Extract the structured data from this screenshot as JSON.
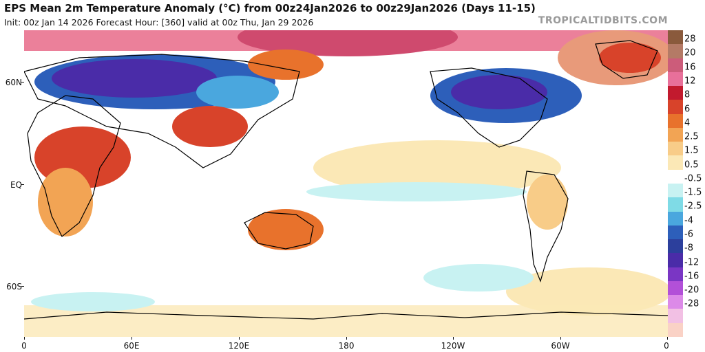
{
  "header": {
    "title": "EPS Mean 2m Temperature Anomaly (°C) from 00z24Jan2026 to 00z29Jan2026 (Days 11-15)",
    "subtitle": "Init: 00z Jan 14 2026   Forecast Hour: [360]   valid at 00z Thu, Jan 29 2026",
    "brand": "TROPICALTIDBITS.COM"
  },
  "map": {
    "projection": "equirectangular",
    "lon_range": [
      0,
      360
    ],
    "lat_range": [
      -90,
      90
    ],
    "lat_labels": [
      "60N",
      "EQ",
      "60S"
    ],
    "lon_labels": [
      "0",
      "60E",
      "120E",
      "180",
      "120W",
      "60W",
      "0"
    ]
  },
  "colorbar": {
    "unit": "°C",
    "labels": [
      "28",
      "20",
      "16",
      "12",
      "8",
      "6",
      "4",
      "2.5",
      "1.5",
      "0.5",
      "-0.5",
      "-1.5",
      "-2.5",
      "-4",
      "-6",
      "-8",
      "-12",
      "-16",
      "-20",
      "-28"
    ],
    "colors": [
      "#8a5a3c",
      "#b47a66",
      "#cc5c7a",
      "#e8709a",
      "#c21a2e",
      "#d8432a",
      "#e8722c",
      "#f2a454",
      "#f8cc88",
      "#fbe8b6",
      "#ffffff",
      "#c8f2f2",
      "#7fdbe6",
      "#4aa7de",
      "#2d5fba",
      "#2c3f9c",
      "#4a2ca8",
      "#7a36c4",
      "#b250d8",
      "#dc8ae8",
      "#f2c0e4",
      "#fad2c6"
    ]
  }
}
